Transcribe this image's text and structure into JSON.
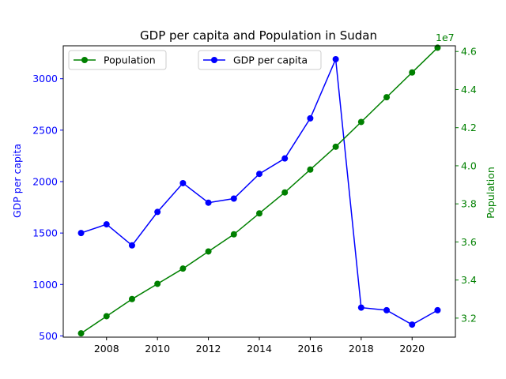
{
  "chart_data": {
    "type": "line",
    "title": "GDP per capita and Population in Sudan",
    "xlabel": "",
    "x": [
      2007,
      2008,
      2009,
      2010,
      2011,
      2012,
      2013,
      2014,
      2015,
      2016,
      2017,
      2018,
      2019,
      2020,
      2021
    ],
    "xlim": [
      2006.3,
      2021.7
    ],
    "x_ticks": [
      2008,
      2010,
      2012,
      2014,
      2016,
      2018,
      2020
    ],
    "x_tick_labels": [
      "2008",
      "2010",
      "2012",
      "2014",
      "2016",
      "2018",
      "2020"
    ],
    "grid": false,
    "left_axis": {
      "label": "GDP per capita",
      "color": "#0000ff",
      "ylim": [
        488,
        3320
      ],
      "ticks": [
        500,
        1000,
        1500,
        2000,
        2500,
        3000
      ],
      "tick_labels": [
        "500",
        "1000",
        "1500",
        "2000",
        "2500",
        "3000"
      ]
    },
    "right_axis": {
      "label": "Population",
      "color": "#008000",
      "ylim": [
        31000000,
        46300000
      ],
      "ticks": [
        32000000,
        34000000,
        36000000,
        38000000,
        40000000,
        42000000,
        44000000,
        46000000
      ],
      "tick_labels": [
        "3.2",
        "3.4",
        "3.6",
        "3.8",
        "4.0",
        "4.2",
        "4.4",
        "4.6"
      ],
      "offset_text": "1e7"
    },
    "series": [
      {
        "name": "GDP per capita",
        "axis": "left",
        "color": "#0000ff",
        "values": [
          1500,
          1585,
          1380,
          1705,
          1985,
          1795,
          1835,
          2075,
          2225,
          2615,
          3190,
          775,
          750,
          610,
          750
        ]
      },
      {
        "name": "Population",
        "axis": "right",
        "color": "#008000",
        "values": [
          31200000,
          32100000,
          33000000,
          33800000,
          34600000,
          35500000,
          36400000,
          37500000,
          38600000,
          39800000,
          41000000,
          42300000,
          43600000,
          44900000,
          46200000
        ]
      }
    ],
    "legend": [
      {
        "label": "Population",
        "color": "#008000",
        "position": "upper-left"
      },
      {
        "label": "GDP per capita",
        "color": "#0000ff",
        "position": "upper-center"
      }
    ]
  }
}
